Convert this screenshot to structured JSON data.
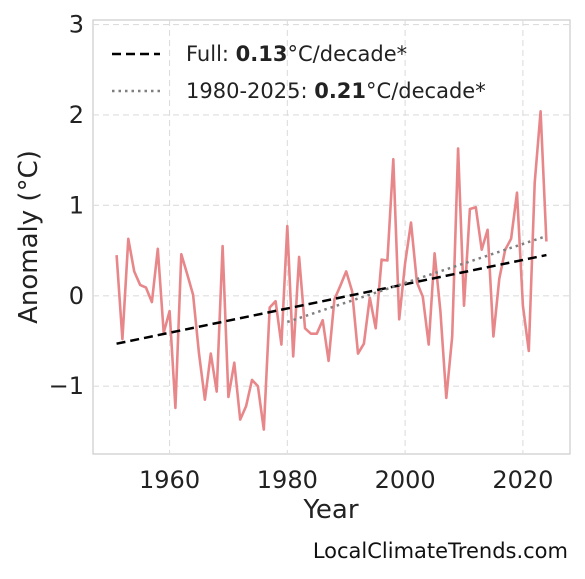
{
  "chart_data": {
    "type": "line",
    "xlabel": "Year",
    "ylabel": "Anomaly (°C)",
    "xlim": [
      1947,
      2028
    ],
    "ylim": [
      -1.75,
      3.05
    ],
    "xticks": [
      1960,
      1980,
      2000,
      2020
    ],
    "yticks": [
      -1,
      0,
      1,
      2,
      3
    ],
    "ytick_labels": [
      "−1",
      "0",
      "1",
      "2",
      "3"
    ],
    "grid": true,
    "legend_position": "top-left",
    "series": [
      {
        "color": "#e8878a",
        "x": [
          1951,
          1952,
          1953,
          1954,
          1955,
          1956,
          1957,
          1958,
          1959,
          1960,
          1961,
          1962,
          1963,
          1964,
          1965,
          1966,
          1967,
          1968,
          1969,
          1970,
          1971,
          1972,
          1973,
          1974,
          1975,
          1976,
          1977,
          1978,
          1979,
          1980,
          1981,
          1982,
          1983,
          1984,
          1985,
          1986,
          1987,
          1988,
          1989,
          1990,
          1991,
          1992,
          1993,
          1994,
          1995,
          1996,
          1997,
          1998,
          1999,
          2000,
          2001,
          2002,
          2003,
          2004,
          2005,
          2006,
          2007,
          2008,
          2009,
          2010,
          2011,
          2012,
          2013,
          2014,
          2015,
          2016,
          2017,
          2018,
          2019,
          2020,
          2021,
          2022,
          2023,
          2024
        ],
        "values": [
          0.45,
          -0.48,
          0.63,
          0.27,
          0.12,
          0.09,
          -0.07,
          0.52,
          -0.41,
          -0.17,
          -1.24,
          0.46,
          0.24,
          0.01,
          -0.64,
          -1.15,
          -0.64,
          -1.06,
          0.55,
          -1.12,
          -0.74,
          -1.37,
          -1.22,
          -0.93,
          -1.0,
          -1.48,
          -0.13,
          -0.06,
          -0.54,
          0.77,
          -0.67,
          0.43,
          -0.36,
          -0.42,
          -0.42,
          -0.27,
          -0.72,
          -0.04,
          0.11,
          0.27,
          0.05,
          -0.64,
          -0.53,
          -0.02,
          -0.36,
          0.4,
          0.39,
          1.51,
          -0.26,
          0.36,
          0.81,
          0.15,
          -0.01,
          -0.54,
          0.47,
          -0.17,
          -1.13,
          -0.45,
          1.63,
          -0.11,
          0.96,
          0.98,
          0.51,
          0.73,
          -0.45,
          0.19,
          0.51,
          0.63,
          1.14,
          -0.11,
          -0.61,
          1.25,
          2.04,
          0.6
        ]
      }
    ],
    "trends": [
      {
        "x": [
          1951,
          2024
        ],
        "values": [
          -0.53,
          0.45
        ],
        "style": "dashed",
        "color": "#000000"
      },
      {
        "x": [
          1980,
          2024
        ],
        "values": [
          -0.29,
          0.66
        ],
        "style": "dotted",
        "color": "#7f7f7f"
      }
    ],
    "legend": [
      {
        "prefix": "Full: ",
        "bold": "0.13",
        "suffix": "°C/decade*"
      },
      {
        "prefix": "1980-2025: ",
        "bold": "0.21",
        "suffix": "°C/decade*"
      }
    ]
  },
  "footer": "LocalClimateTrends.com"
}
